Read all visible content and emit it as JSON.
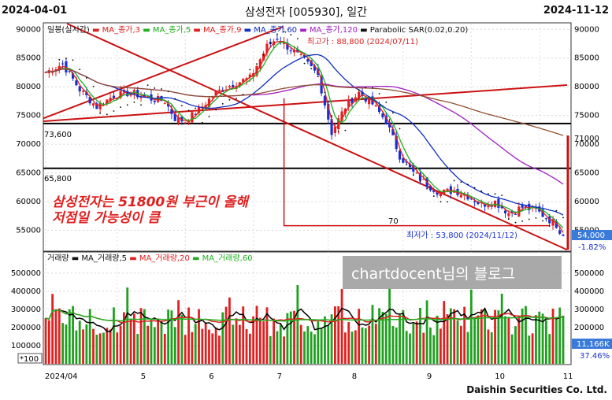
{
  "header": {
    "start_date": "2024-04-01",
    "title": "삼성전자 [005930], 일간",
    "end_date": "2024-11-12"
  },
  "footer": {
    "brand": "Daishin Securities Co. Ltd."
  },
  "watermark": "chartdocent님의 블로그",
  "annotation": {
    "line1": "삼성전자는 51800원 부근이 올해",
    "line2": "저점일 가능성이 큼"
  },
  "colors": {
    "up": "#e02020",
    "down": "#1a2fd0",
    "ma3": "#e02020",
    "ma5": "#20b020",
    "ma20": "#1030c0",
    "ma60": "#a020c0",
    "ma120": "#905030",
    "trend": "#cc1111",
    "vol_up": "#e02020",
    "vol_down": "#20a020"
  },
  "chart_data": [
    {
      "type": "candlestick",
      "legend": [
        "일봉(실시간)",
        "MA_종가,3",
        "MA_종가,5",
        "MA_종가,9",
        "MA_종가,60",
        "MA_종가,120",
        "Parabolic SAR(0.02,0.20)"
      ],
      "x_months": [
        "2024/04",
        "5",
        "6",
        "7",
        "8",
        "9",
        "10",
        "11"
      ],
      "y_ticks": [
        55000,
        60000,
        65000,
        70000,
        75000,
        80000,
        85000,
        90000
      ],
      "ylim": [
        51500,
        91000
      ],
      "high_label": "최고가 : 88,800 (2024/07/11)",
      "low_label": "최저가 : 53,800 (2024/11/12)",
      "last_price": "54,000",
      "last_change": "-1.82%",
      "levels": [
        {
          "label": "73,600",
          "value": 73600
        },
        {
          "label": "65,800",
          "value": 65800
        }
      ],
      "box_label": "70",
      "axis_ticks": [
        "71000"
      ],
      "close_anchors": [
        [
          0,
          82500
        ],
        [
          5,
          84000
        ],
        [
          10,
          79500
        ],
        [
          15,
          76500
        ],
        [
          20,
          78500
        ],
        [
          25,
          79000
        ],
        [
          30,
          78000
        ],
        [
          35,
          77500
        ],
        [
          38,
          74500
        ],
        [
          41,
          74000
        ],
        [
          45,
          76000
        ],
        [
          50,
          79000
        ],
        [
          55,
          80500
        ],
        [
          60,
          81500
        ],
        [
          65,
          87000
        ],
        [
          68,
          88500
        ],
        [
          72,
          86500
        ],
        [
          76,
          84500
        ],
        [
          80,
          82000
        ],
        [
          84,
          72000
        ],
        [
          88,
          76500
        ],
        [
          92,
          79000
        ],
        [
          96,
          77000
        ],
        [
          100,
          74000
        ],
        [
          104,
          68000
        ],
        [
          108,
          65000
        ],
        [
          112,
          63000
        ],
        [
          116,
          61500
        ],
        [
          120,
          62000
        ],
        [
          124,
          61000
        ],
        [
          128,
          59500
        ],
        [
          132,
          60000
        ],
        [
          136,
          58000
        ],
        [
          140,
          59000
        ],
        [
          144,
          58500
        ],
        [
          150,
          56000
        ],
        [
          152,
          54000
        ]
      ],
      "n_days": 153
    },
    {
      "type": "bar",
      "legend": [
        "거래량",
        "MA_거래량,5",
        "MA_거래량,20",
        "MA_거래량,60"
      ],
      "y_ticks": [
        100000,
        200000,
        300000,
        400000,
        500000
      ],
      "ylim": [
        0,
        560000
      ],
      "last_volume": "11,166K",
      "last_ratio": "37.46%",
      "scale_note": "*100"
    }
  ]
}
